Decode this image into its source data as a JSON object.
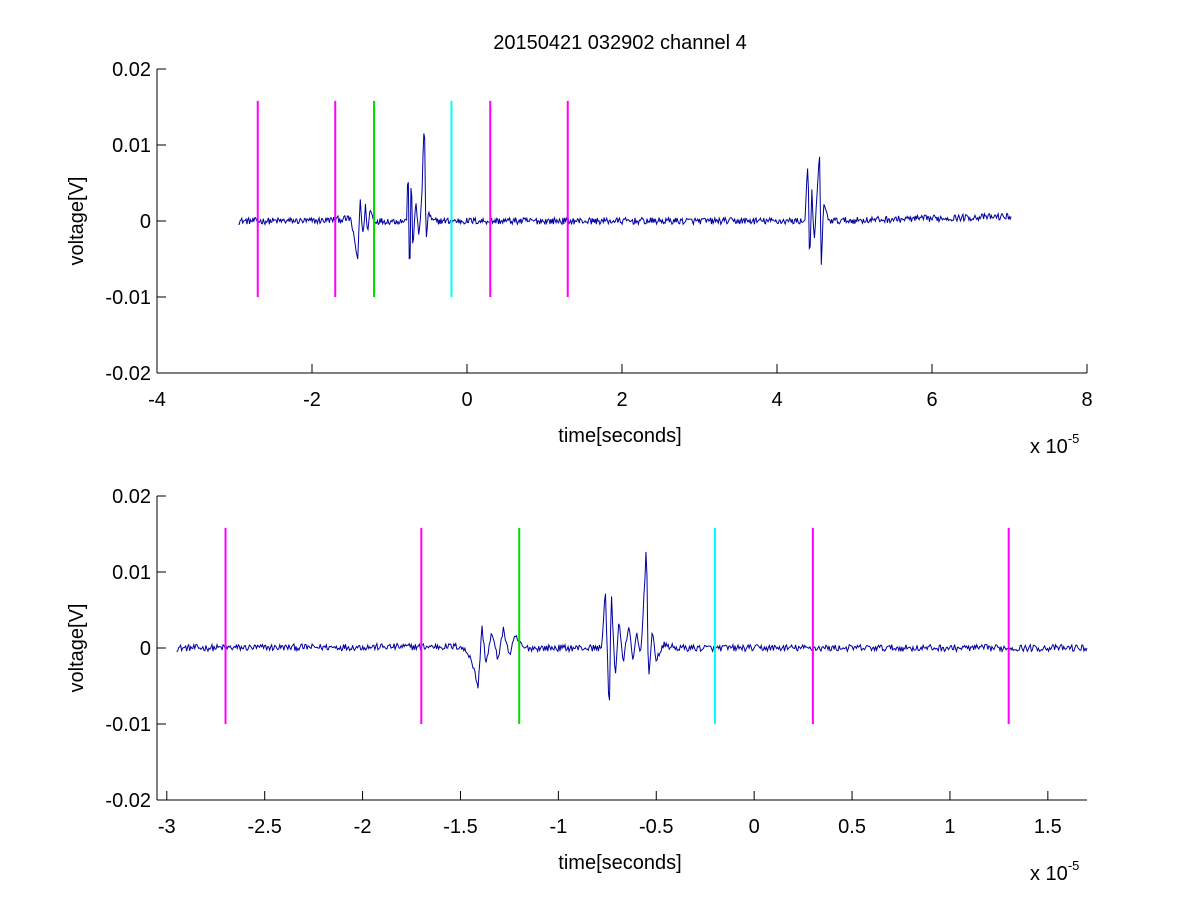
{
  "chart_data": {
    "title": "20150421 032902 channel 4",
    "colors": {
      "signal": "#0000a0",
      "magenta": "#ff00ff",
      "green": "#00e000",
      "cyan": "#00ffff",
      "axes": "#000000",
      "background": "#ffffff"
    },
    "charts": [
      {
        "type": "line",
        "xlabel": "time[seconds]",
        "ylabel": "voltage[V]",
        "x_exponent_label": {
          "base": "x 10",
          "exponent": "-5"
        },
        "xlim": [
          -4e-05,
          8e-05
        ],
        "ylim": [
          -0.02,
          0.02
        ],
        "x_ticks": [
          -4,
          -2,
          0,
          2,
          4,
          6,
          8
        ],
        "x_tick_labels": [
          "-4",
          "-2",
          "0",
          "2",
          "4",
          "6",
          "8"
        ],
        "y_ticks": [
          -0.02,
          -0.01,
          0,
          0.01,
          0.02
        ],
        "y_tick_labels": [
          "-0.02",
          "-0.01",
          "0",
          "0.01",
          "0.02"
        ],
        "grid": false,
        "vertical_markers": [
          {
            "x": -2.7e-05,
            "ymin": -0.01,
            "ymax": 0.0158,
            "color": "magenta"
          },
          {
            "x": -1.7e-05,
            "ymin": -0.01,
            "ymax": 0.0158,
            "color": "magenta"
          },
          {
            "x": -1.2e-05,
            "ymin": -0.01,
            "ymax": 0.0158,
            "color": "green"
          },
          {
            "x": -2e-06,
            "ymin": -0.01,
            "ymax": 0.0158,
            "color": "cyan"
          },
          {
            "x": 3e-06,
            "ymin": -0.01,
            "ymax": 0.0158,
            "color": "magenta"
          },
          {
            "x": 1.3e-05,
            "ymin": -0.01,
            "ymax": 0.0158,
            "color": "magenta"
          }
        ],
        "signal_keypoints": [
          [
            -2.95e-05,
            0
          ],
          [
            -2e-05,
            0
          ],
          [
            -1.5e-05,
            0.0003
          ],
          [
            -1.43e-05,
            -0.004
          ],
          [
            -1.41e-05,
            -0.005
          ],
          [
            -1.38e-05,
            0.0028
          ],
          [
            -1.34e-05,
            -0.002
          ],
          [
            -1.31e-05,
            0.002
          ],
          [
            -1.28e-05,
            -0.0015
          ],
          [
            -1.25e-05,
            0.0016
          ],
          [
            -1.2e-05,
            0
          ],
          [
            -7.8e-06,
            0
          ],
          [
            -7.6e-06,
            0.0075
          ],
          [
            -7.4e-06,
            -0.0092
          ],
          [
            -7.2e-06,
            0.0072
          ],
          [
            -7e-06,
            -0.004
          ],
          [
            -6.6e-06,
            0.003
          ],
          [
            -6.2e-06,
            -0.0025
          ],
          [
            -5.8e-06,
            0.004
          ],
          [
            -5.5e-06,
            0.0143
          ],
          [
            -5.3e-06,
            -0.0032
          ],
          [
            -5e-06,
            0.0012
          ],
          [
            -4.5e-06,
            0
          ],
          [
            4.36e-05,
            0
          ],
          [
            4.4e-05,
            0.0085
          ],
          [
            4.42e-05,
            -0.0065
          ],
          [
            4.45e-05,
            0.004
          ],
          [
            4.48e-05,
            -0.003
          ],
          [
            4.52e-05,
            0.004
          ],
          [
            4.55e-05,
            0.0088
          ],
          [
            4.57e-05,
            -0.0062
          ],
          [
            4.6e-05,
            0.002
          ],
          [
            4.68e-05,
            0
          ],
          [
            7.02e-05,
            0.0006
          ]
        ]
      },
      {
        "type": "line",
        "xlabel": "time[seconds]",
        "ylabel": "voltage[V]",
        "x_exponent_label": {
          "base": "x 10",
          "exponent": "-5"
        },
        "xlim": [
          -3.05e-05,
          1.7e-05
        ],
        "ylim": [
          -0.02,
          0.02
        ],
        "x_ticks": [
          -3,
          -2.5,
          -2,
          -1.5,
          -1,
          -0.5,
          0,
          0.5,
          1,
          1.5
        ],
        "x_tick_labels": [
          "-3",
          "-2.5",
          "-2",
          "-1.5",
          "-1",
          "-0.5",
          "0",
          "0.5",
          "1",
          "1.5"
        ],
        "y_ticks": [
          -0.02,
          -0.01,
          0,
          0.01,
          0.02
        ],
        "y_tick_labels": [
          "-0.02",
          "-0.01",
          "0",
          "0.01",
          "0.02"
        ],
        "grid": false,
        "vertical_markers": [
          {
            "x": -2.7e-05,
            "ymin": -0.01,
            "ymax": 0.0158,
            "color": "magenta"
          },
          {
            "x": -1.7e-05,
            "ymin": -0.01,
            "ymax": 0.0158,
            "color": "magenta"
          },
          {
            "x": -1.2e-05,
            "ymin": -0.01,
            "ymax": 0.0158,
            "color": "green"
          },
          {
            "x": -2e-06,
            "ymin": -0.01,
            "ymax": 0.0158,
            "color": "cyan"
          },
          {
            "x": 3e-06,
            "ymin": -0.01,
            "ymax": 0.0158,
            "color": "magenta"
          },
          {
            "x": 1.3e-05,
            "ymin": -0.01,
            "ymax": 0.0158,
            "color": "magenta"
          }
        ],
        "signal_keypoints": [
          [
            -2.95e-05,
            0
          ],
          [
            -1.5e-05,
            0.0002
          ],
          [
            -1.45e-05,
            -0.001
          ],
          [
            -1.42e-05,
            -0.004
          ],
          [
            -1.41e-05,
            -0.0052
          ],
          [
            -1.39e-05,
            0.0028
          ],
          [
            -1.37e-05,
            -0.002
          ],
          [
            -1.34e-05,
            0.002
          ],
          [
            -1.31e-05,
            -0.0015
          ],
          [
            -1.28e-05,
            0.0025
          ],
          [
            -1.25e-05,
            -0.001
          ],
          [
            -1.22e-05,
            0.0015
          ],
          [
            -1.18e-05,
            0
          ],
          [
            -7.8e-06,
            0
          ],
          [
            -7.6e-06,
            0.0076
          ],
          [
            -7.4e-06,
            -0.0092
          ],
          [
            -7.3e-06,
            0.0078
          ],
          [
            -7.1e-06,
            -0.004
          ],
          [
            -6.9e-06,
            0.004
          ],
          [
            -6.7e-06,
            -0.0022
          ],
          [
            -6.4e-06,
            0.0032
          ],
          [
            -6.2e-06,
            -0.002
          ],
          [
            -6e-06,
            0.002
          ],
          [
            -5.8e-06,
            -0.001
          ],
          [
            -5.6e-06,
            0.008
          ],
          [
            -5.5e-06,
            0.0143
          ],
          [
            -5.4e-06,
            -0.0045
          ],
          [
            -5.2e-06,
            0.002
          ],
          [
            -5e-06,
            -0.0015
          ],
          [
            -4.6e-06,
            0.0004
          ],
          [
            -4e-06,
            0
          ],
          [
            1.7e-05,
            0
          ]
        ]
      }
    ]
  }
}
